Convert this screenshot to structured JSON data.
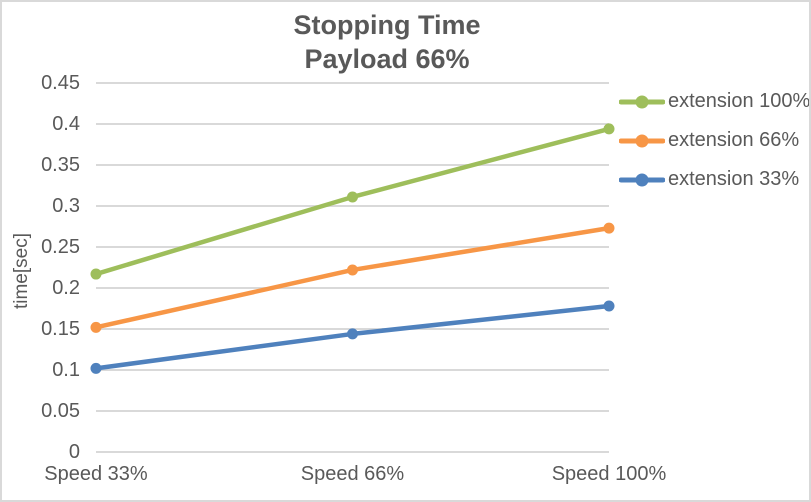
{
  "window": {
    "background": "#FFFFFF",
    "border_color": "#D9D9D9"
  },
  "title": {
    "line1": "Stopping Time",
    "line2": "Payload 66%"
  },
  "chart_data": {
    "type": "line",
    "title": "Stopping Time Payload 66%",
    "categories": [
      "Speed 33%",
      "Speed 66%",
      "Speed 100%"
    ],
    "series": [
      {
        "name": "extension 100%",
        "color": "#9EBE5B",
        "values": [
          0.217,
          0.311,
          0.394
        ]
      },
      {
        "name": "extension 66%",
        "color": "#F79646",
        "values": [
          0.152,
          0.222,
          0.273
        ]
      },
      {
        "name": "extension 33%",
        "color": "#4F81BD",
        "values": [
          0.102,
          0.144,
          0.178
        ]
      }
    ],
    "xlabel": "",
    "ylabel": "time[sec]",
    "ylim": [
      0,
      0.45
    ],
    "y_tick_step": 0.05,
    "y_tick_labels": [
      "0",
      "0.05",
      "0.1",
      "0.15",
      "0.2",
      "0.25",
      "0.3",
      "0.35",
      "0.4",
      "0.45"
    ],
    "grid": "horizontal-only",
    "gridline_color": "#D9D9D9",
    "text_color": "#595959",
    "legend_position": "right",
    "marker": "circle"
  }
}
